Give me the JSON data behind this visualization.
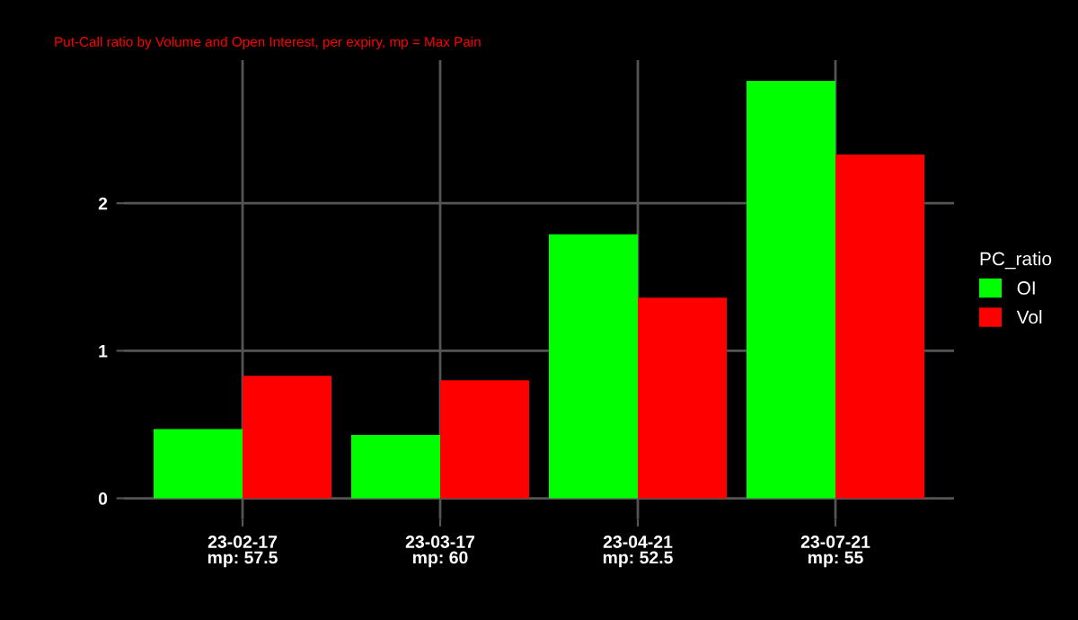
{
  "chart_data": {
    "type": "bar",
    "subtitle": "Put-Call ratio by Volume and Open Interest, per expiry, mp = Max Pain",
    "categories": [
      "23-02-17\nmp: 57.5",
      "23-03-17\nmp: 60",
      "23-04-21\nmp: 52.5",
      "23-07-21\nmp: 55"
    ],
    "series": [
      {
        "name": "OI",
        "color": "#00ff00",
        "values": [
          0.47,
          0.43,
          1.79,
          2.83
        ]
      },
      {
        "name": "Vol",
        "color": "#ff0000",
        "values": [
          0.83,
          0.8,
          1.36,
          2.33
        ]
      }
    ],
    "legend_title": "PC_ratio",
    "legend": "right",
    "ylim": [
      -0.14,
      2.97
    ],
    "yticks": [
      0,
      1,
      2
    ],
    "grid": true
  }
}
